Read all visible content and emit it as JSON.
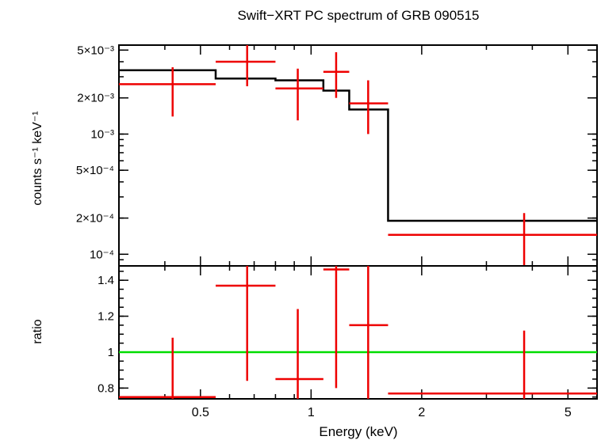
{
  "chart_data": {
    "type": "scatter",
    "title": "Swift−XRT PC spectrum of GRB 090515",
    "xlabel": "Energy (keV)",
    "xscale": "log",
    "xlim": [
      0.3,
      6.0
    ],
    "x_ticks": [
      {
        "value": 0.5,
        "label": "0.5"
      },
      {
        "value": 1,
        "label": "1"
      },
      {
        "value": 2,
        "label": "2"
      },
      {
        "value": 5,
        "label": "5"
      }
    ],
    "panels": [
      {
        "id": "spectrum",
        "ylabel": "counts s⁻¹ keV⁻¹",
        "yscale": "log",
        "ylim": [
          8e-05,
          0.0055
        ],
        "y_ticks": [
          {
            "value": 0.005,
            "label": "5×10⁻³"
          },
          {
            "value": 0.002,
            "label": "2×10⁻³"
          },
          {
            "value": 0.001,
            "label": "10⁻³"
          },
          {
            "value": 0.0005,
            "label": "5×10⁻⁴"
          },
          {
            "value": 0.0002,
            "label": "2×10⁻⁴"
          },
          {
            "value": 0.0001,
            "label": "10⁻⁴"
          }
        ],
        "data": {
          "color": "#ee0000",
          "points": [
            {
              "x": 0.42,
              "xlo": 0.3,
              "xhi": 0.55,
              "y": 0.0026,
              "ylo": 0.0014,
              "yhi": 0.0036
            },
            {
              "x": 0.67,
              "xlo": 0.55,
              "xhi": 0.8,
              "y": 0.004,
              "ylo": 0.0025,
              "yhi": 0.0055
            },
            {
              "x": 0.92,
              "xlo": 0.8,
              "xhi": 1.08,
              "y": 0.0024,
              "ylo": 0.0013,
              "yhi": 0.0035
            },
            {
              "x": 1.17,
              "xlo": 1.08,
              "xhi": 1.27,
              "y": 0.0033,
              "ylo": 0.002,
              "yhi": 0.0048
            },
            {
              "x": 1.43,
              "xlo": 1.27,
              "xhi": 1.62,
              "y": 0.0018,
              "ylo": 0.001,
              "yhi": 0.0028
            },
            {
              "x": 3.8,
              "xlo": 1.62,
              "xhi": 6.0,
              "y": 0.000145,
              "ylo": 8e-05,
              "yhi": 0.00022
            }
          ]
        },
        "model": {
          "color": "#000000",
          "steps": [
            {
              "xlo": 0.3,
              "xhi": 0.55,
              "y": 0.0034
            },
            {
              "xlo": 0.55,
              "xhi": 0.8,
              "y": 0.0029
            },
            {
              "xlo": 0.8,
              "xhi": 1.08,
              "y": 0.0028
            },
            {
              "xlo": 1.08,
              "xhi": 1.27,
              "y": 0.0023
            },
            {
              "xlo": 1.27,
              "xhi": 1.62,
              "y": 0.0016
            },
            {
              "xlo": 1.62,
              "xhi": 6.0,
              "y": 0.00019
            }
          ]
        }
      },
      {
        "id": "ratio",
        "ylabel": "ratio",
        "yscale": "linear",
        "ylim": [
          0.74,
          1.48
        ],
        "y_ticks": [
          {
            "value": 0.8,
            "label": "0.8"
          },
          {
            "value": 1.0,
            "label": "1"
          },
          {
            "value": 1.2,
            "label": "1.2"
          },
          {
            "value": 1.4,
            "label": "1.4"
          }
        ],
        "reference": {
          "y": 1.0,
          "color": "#00dd00"
        },
        "data": {
          "color": "#ee0000",
          "points": [
            {
              "x": 0.42,
              "xlo": 0.3,
              "xhi": 0.55,
              "y": 0.75,
              "ylo": 0.74,
              "yhi": 1.08
            },
            {
              "x": 0.67,
              "xlo": 0.55,
              "xhi": 0.8,
              "y": 1.37,
              "ylo": 0.84,
              "yhi": 1.48
            },
            {
              "x": 0.92,
              "xlo": 0.8,
              "xhi": 1.08,
              "y": 0.85,
              "ylo": 0.74,
              "yhi": 1.24
            },
            {
              "x": 1.17,
              "xlo": 1.08,
              "xhi": 1.27,
              "y": 1.46,
              "ylo": 0.8,
              "yhi": 1.48
            },
            {
              "x": 1.43,
              "xlo": 1.27,
              "xhi": 1.62,
              "y": 1.15,
              "ylo": 0.74,
              "yhi": 1.48
            },
            {
              "x": 3.8,
              "xlo": 1.62,
              "xhi": 6.0,
              "y": 0.77,
              "ylo": 0.74,
              "yhi": 1.12
            }
          ]
        }
      }
    ]
  }
}
